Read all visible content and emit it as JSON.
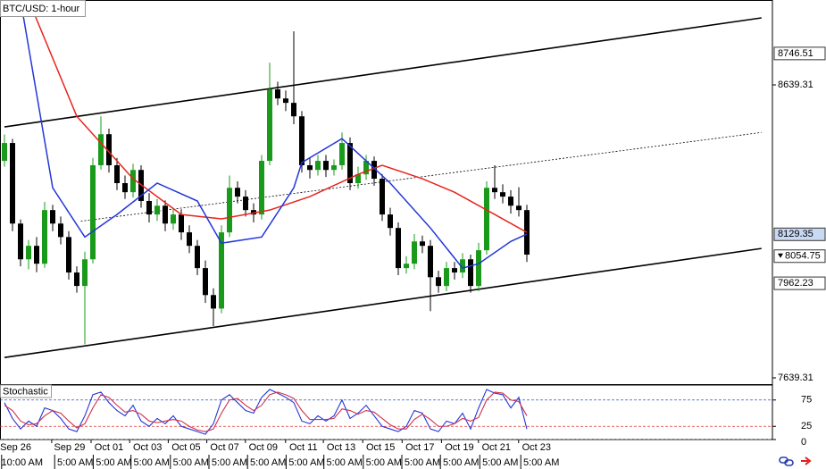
{
  "chart_data": [
    {
      "type": "candlestick",
      "title": "BTC/USD: 1-hour",
      "candles": {
        "open": [
          8380,
          8441,
          8166,
          8044,
          8090,
          8029,
          8212,
          8166,
          8120,
          7999,
          7953,
          8044,
          8365,
          8471,
          8365,
          8304,
          8273,
          8349,
          8243,
          8197,
          8227,
          8166,
          8197,
          8136,
          8090,
          8014,
          7922,
          7876,
          8136,
          8288,
          8258,
          8212,
          8197,
          8380,
          8624,
          8593,
          8578,
          8532,
          8365,
          8349,
          8380,
          8349,
          8365,
          8441,
          8304,
          8334,
          8380,
          8319,
          8197,
          8151,
          8014,
          8029,
          8105,
          8090,
          7983,
          7953,
          8014,
          7999,
          8044,
          7953,
          8075,
          8288,
          8273,
          8258,
          8227,
          8212
        ],
        "high": [
          8470,
          8455,
          8180,
          8110,
          8120,
          8240,
          8230,
          8190,
          8140,
          8020,
          8070,
          8390,
          8532,
          8490,
          8390,
          8330,
          8370,
          8365,
          8270,
          8250,
          8245,
          8220,
          8215,
          8160,
          8110,
          8040,
          7945,
          8160,
          8330,
          8310,
          8280,
          8235,
          8400,
          8715,
          8650,
          8620,
          8822,
          8550,
          8390,
          8400,
          8400,
          8385,
          8477,
          8460,
          8360,
          8400,
          8395,
          8335,
          8220,
          8170,
          8055,
          8130,
          8125,
          8110,
          8005,
          8035,
          8035,
          8065,
          8060,
          8100,
          8310,
          8365,
          8300,
          8280,
          8290,
          8230
        ],
        "low": [
          8360,
          8140,
          8020,
          8010,
          8000,
          8015,
          8140,
          8095,
          7975,
          7930,
          7754,
          8030,
          8350,
          8340,
          8280,
          8250,
          8255,
          8220,
          8170,
          8175,
          8140,
          8145,
          8110,
          8065,
          7990,
          7895,
          7816,
          7860,
          8120,
          8235,
          8190,
          8170,
          8180,
          8365,
          8570,
          8550,
          8505,
          8340,
          8320,
          8330,
          8325,
          8330,
          8350,
          8280,
          8285,
          8315,
          8295,
          8175,
          8125,
          7990,
          7995,
          8010,
          8065,
          7867,
          7930,
          7935,
          7975,
          7980,
          7930,
          7935,
          8060,
          8250,
          8235,
          8200,
          8190,
          8035
        ],
        "close": [
          8441,
          8166,
          8044,
          8090,
          8029,
          8212,
          8166,
          8120,
          7999,
          7953,
          8044,
          8365,
          8471,
          8365,
          8304,
          8273,
          8349,
          8243,
          8197,
          8227,
          8166,
          8197,
          8136,
          8090,
          8014,
          7922,
          7876,
          8136,
          8288,
          8258,
          8212,
          8197,
          8380,
          8624,
          8593,
          8578,
          8532,
          8365,
          8349,
          8380,
          8349,
          8365,
          8441,
          8304,
          8334,
          8380,
          8319,
          8197,
          8151,
          8014,
          8029,
          8105,
          8090,
          7983,
          7953,
          8014,
          7999,
          8044,
          7953,
          8075,
          8288,
          8273,
          8258,
          8227,
          8212,
          8060
        ]
      },
      "up_color": "#1a9a1a",
      "down_color": "#000000",
      "series": [
        {
          "color": "#e8231c",
          "x": [
            3,
            9,
            16,
            22,
            27,
            33,
            38,
            44,
            47,
            52,
            56,
            61,
            65
          ],
          "values": [
            8929,
            8532,
            8319,
            8197,
            8182,
            8212,
            8258,
            8334,
            8365,
            8319,
            8273,
            8197,
            8136
          ]
        },
        {
          "color": "#2336d9",
          "x": [
            2,
            6,
            10,
            14,
            19,
            24,
            27,
            32,
            36,
            37,
            42,
            45,
            48,
            53,
            57,
            59,
            63,
            65
          ],
          "values": [
            8929,
            8288,
            8120,
            8197,
            8304,
            8243,
            8099,
            8120,
            8288,
            8374,
            8456,
            8380,
            8304,
            8151,
            8014,
            8029,
            8105,
            8130
          ]
        }
      ],
      "channels": [
        {
          "x": [
            0,
            94.2
          ],
          "values": [
            8496,
            8868
          ],
          "dashed": false
        },
        {
          "x": [
            9.5,
            94.2
          ],
          "values": [
            8174,
            8477
          ],
          "dashed": true
        },
        {
          "x": [
            0,
            94.2
          ],
          "values": [
            7709,
            8081
          ],
          "dashed": false
        }
      ],
      "xlim": [
        -0.556,
        95.556
      ],
      "ylim": [
        7618,
        8929
      ],
      "yticks": [
        8639.31,
        7639.31
      ],
      "price_labels": [
        8746.51,
        8129.35,
        8054.75,
        7962.23
      ],
      "price_label_fills": [
        "#ffffff",
        "#c9d9f2",
        "#ffffff",
        "#ffffff"
      ],
      "xticks": [
        {
          "value": 1.4,
          "label": "Sep 26"
        },
        {
          "value": 8.1,
          "label": "Sep 29"
        },
        {
          "value": 13,
          "label": "Oct 01"
        },
        {
          "value": 17.8,
          "label": "Oct 03"
        },
        {
          "value": 22.6,
          "label": "Oct 05"
        },
        {
          "value": 27.4,
          "label": "Oct 07"
        },
        {
          "value": 32.2,
          "label": "Oct 09"
        },
        {
          "value": 37.2,
          "label": "Oct 11"
        },
        {
          "value": 41.9,
          "label": "Oct 13"
        },
        {
          "value": 46.8,
          "label": "Oct 15"
        },
        {
          "value": 51.7,
          "label": "Oct 17"
        },
        {
          "value": 56.6,
          "label": "Oct 19"
        },
        {
          "value": 61.2,
          "label": "Oct 21"
        },
        {
          "value": 66.2,
          "label": "Oct 23"
        }
      ],
      "xticks_time": [
        {
          "value": 2.2,
          "label": "10:00 AM"
        },
        {
          "value": 8.8,
          "label": "5:00 AM"
        },
        {
          "value": 13.6,
          "label": "5:00 AM"
        },
        {
          "value": 18.3,
          "label": "5:00 AM"
        },
        {
          "value": 23.2,
          "label": "5:00 AM"
        },
        {
          "value": 28,
          "label": "5:00 AM"
        },
        {
          "value": 32.8,
          "label": "5:00 AM"
        },
        {
          "value": 37.6,
          "label": "5:00 AM"
        },
        {
          "value": 42.3,
          "label": "5:00 AM"
        },
        {
          "value": 47.2,
          "label": "5:00 AM"
        },
        {
          "value": 52,
          "label": "5:00 AM"
        },
        {
          "value": 56.8,
          "label": "5:00 AM"
        },
        {
          "value": 61.7,
          "label": "5:00 AM"
        },
        {
          "value": 66.8,
          "label": "5:00 AM"
        }
      ]
    },
    {
      "type": "line",
      "title": "Stochastic",
      "series": [
        {
          "color": "#2336d9",
          "values": [
            70,
            40,
            20,
            35,
            25,
            60,
            55,
            40,
            20,
            15,
            45,
            85,
            90,
            70,
            55,
            45,
            65,
            35,
            25,
            40,
            30,
            45,
            25,
            20,
            15,
            10,
            30,
            75,
            85,
            70,
            55,
            50,
            80,
            95,
            88,
            80,
            70,
            35,
            30,
            45,
            35,
            45,
            75,
            40,
            50,
            65,
            45,
            25,
            20,
            15,
            25,
            55,
            50,
            20,
            15,
            35,
            30,
            50,
            20,
            60,
            95,
            88,
            85,
            60,
            80,
            20
          ]
        },
        {
          "color": "#d0304a",
          "values": [
            65,
            55,
            35,
            28,
            30,
            45,
            55,
            50,
            35,
            22,
            30,
            60,
            85,
            80,
            65,
            52,
            55,
            48,
            35,
            32,
            35,
            38,
            35,
            25,
            18,
            15,
            20,
            50,
            75,
            78,
            65,
            55,
            65,
            85,
            90,
            85,
            78,
            55,
            38,
            38,
            38,
            40,
            58,
            55,
            48,
            55,
            52,
            40,
            28,
            20,
            20,
            38,
            48,
            38,
            25,
            25,
            30,
            40,
            35,
            42,
            75,
            90,
            88,
            75,
            72,
            45
          ]
        }
      ],
      "ylim": [
        0,
        100
      ],
      "yticks": [
        0,
        25,
        75
      ],
      "level_colors": [
        "#888888",
        "#e03030",
        "#3050c0"
      ]
    }
  ]
}
